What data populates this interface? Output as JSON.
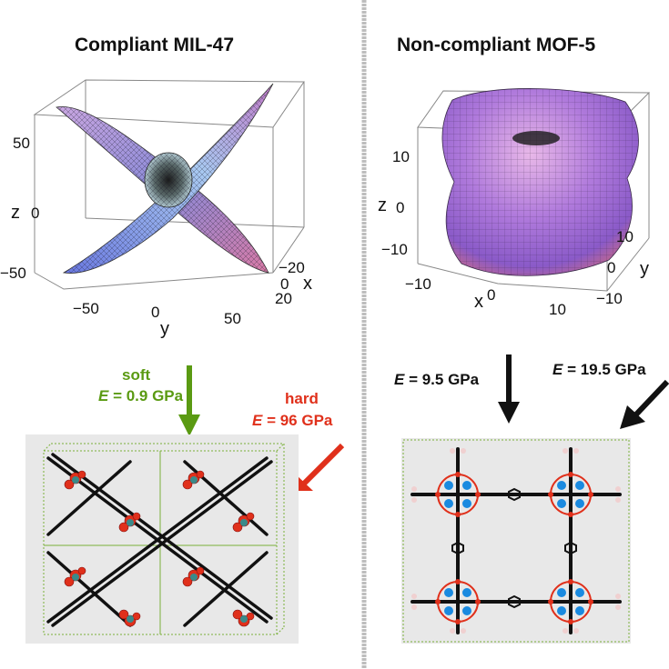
{
  "left": {
    "title": "Compliant MIL-47",
    "plot": {
      "z_label": "z",
      "x_label": "x",
      "y_label": "y",
      "z_ticks": [
        "50",
        "0",
        "−50"
      ],
      "y_ticks": [
        "−50",
        "0",
        "50"
      ],
      "x_ticks": [
        "−20",
        "0",
        "20"
      ]
    },
    "soft": {
      "word": "soft",
      "e_symbol": "E",
      "value": " = 0.9 GPa",
      "color": "#5a9a12"
    },
    "hard": {
      "word": "hard",
      "e_symbol": "E",
      "value": " = 96 GPa",
      "color": "#e0301b"
    }
  },
  "right": {
    "title": "Non-compliant MOF-5",
    "plot": {
      "z_label": "z",
      "x_label": "x",
      "y_label": "y",
      "z_ticks": [
        "10",
        "0",
        "−10"
      ],
      "x_ticks": [
        "−10",
        "0",
        "10"
      ],
      "y_ticks": [
        "10",
        "0",
        "−10"
      ]
    },
    "e1": {
      "e_symbol": "E",
      "value": " = 9.5 GPa"
    },
    "e2": {
      "e_symbol": "E",
      "value": " = 19.5 GPa"
    }
  }
}
